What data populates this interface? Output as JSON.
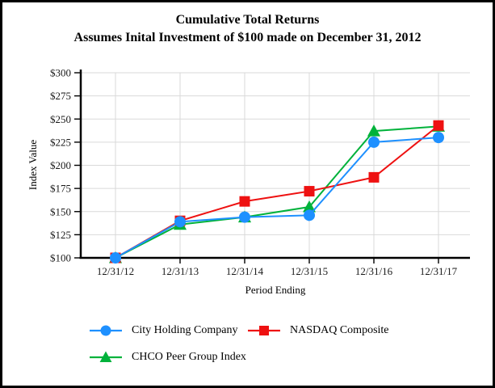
{
  "titles": {
    "line1": "Cumulative Total Returns",
    "line2": "Assumes Inital Investment of $100 made on December 31, 2012"
  },
  "chart_data": {
    "type": "line",
    "title": "Cumulative Total Returns",
    "subtitle": "Assumes Inital Investment of $100 made on December 31, 2012",
    "xlabel": "Period Ending",
    "ylabel": "Index Value",
    "categories": [
      "12/31/12",
      "12/31/13",
      "12/31/14",
      "12/31/15",
      "12/31/16",
      "12/31/17"
    ],
    "ylim": [
      100,
      300
    ],
    "y_tick_values": [
      100,
      125,
      150,
      175,
      200,
      225,
      250,
      275,
      300
    ],
    "y_tick_labels": [
      "$100",
      "$125",
      "$150",
      "$175",
      "$200",
      "$225",
      "$250",
      "$275",
      "$300"
    ],
    "grid": true,
    "legend_position": "bottom-left",
    "series": [
      {
        "name": "City Holding Company",
        "marker": "circle",
        "color": "#1E90FF",
        "z": 3,
        "values": [
          100,
          139,
          144,
          146,
          225,
          230
        ]
      },
      {
        "name": "NASDAQ Composite",
        "marker": "square",
        "color": "#EE1111",
        "z": 2,
        "values": [
          100,
          140,
          161,
          172,
          187,
          243
        ]
      },
      {
        "name": "CHCO Peer Group Index",
        "marker": "triangle",
        "color": "#00B23B",
        "z": 1,
        "values": [
          100,
          136,
          144,
          155,
          237,
          242
        ]
      }
    ],
    "colors": {
      "axis": "#000000",
      "gridline": "#d9d9d9",
      "tick": "#1a1a1a"
    }
  }
}
